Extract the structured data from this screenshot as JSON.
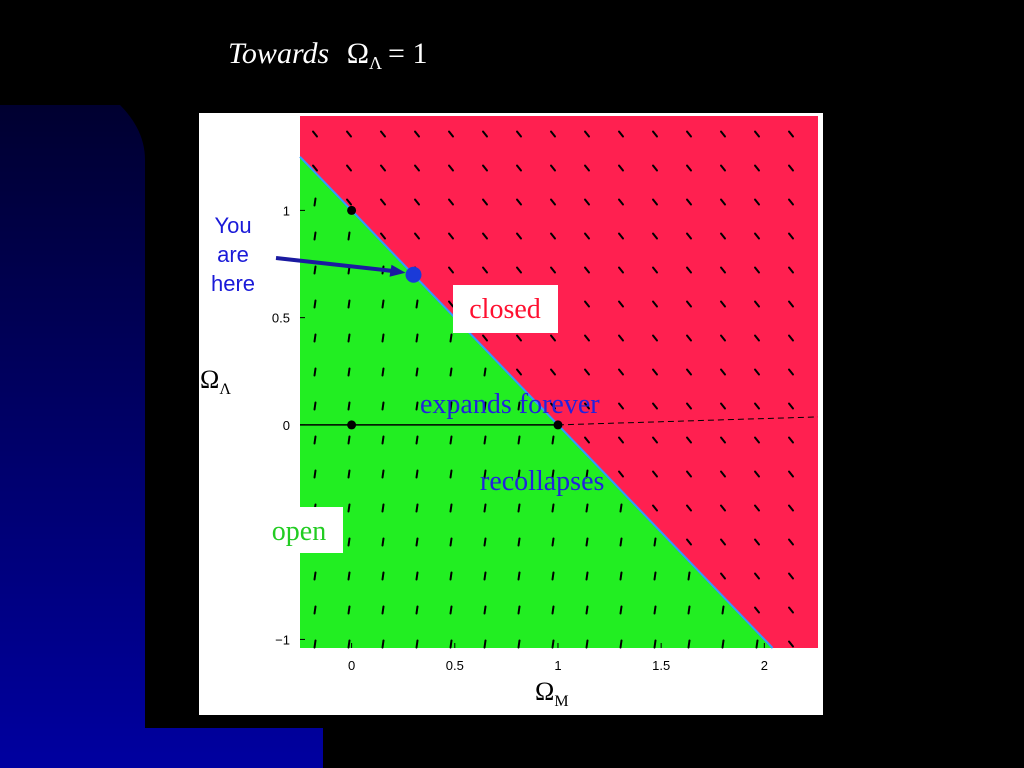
{
  "title": {
    "text": "Towards",
    "symbol": "Ω",
    "subscript": "Λ",
    "equals": "= 1"
  },
  "chart_data": {
    "type": "vector-field",
    "x_label": {
      "symbol": "Ω",
      "subscript": "M"
    },
    "y_label": {
      "symbol": "Ω",
      "subscript": "Λ"
    },
    "xlim": [
      -0.25,
      2.26
    ],
    "ylim": [
      -1.04,
      1.44
    ],
    "xticks": [
      0,
      0.5,
      1,
      1.5,
      2
    ],
    "yticks": [
      {
        "value": -1,
        "label": "−1"
      },
      0,
      0.5,
      1
    ],
    "points": {
      "x": [
        0,
        0,
        1
      ],
      "y": [
        1,
        0,
        0
      ]
    },
    "you_are_here": {
      "x": 0.3,
      "y": 0.7,
      "lines": [
        "You",
        "are",
        "here"
      ]
    },
    "regions": {
      "closed": "closed",
      "open": "open",
      "open_dash": "-",
      "expands": "expands forever",
      "recollapses": "recollapses"
    }
  }
}
